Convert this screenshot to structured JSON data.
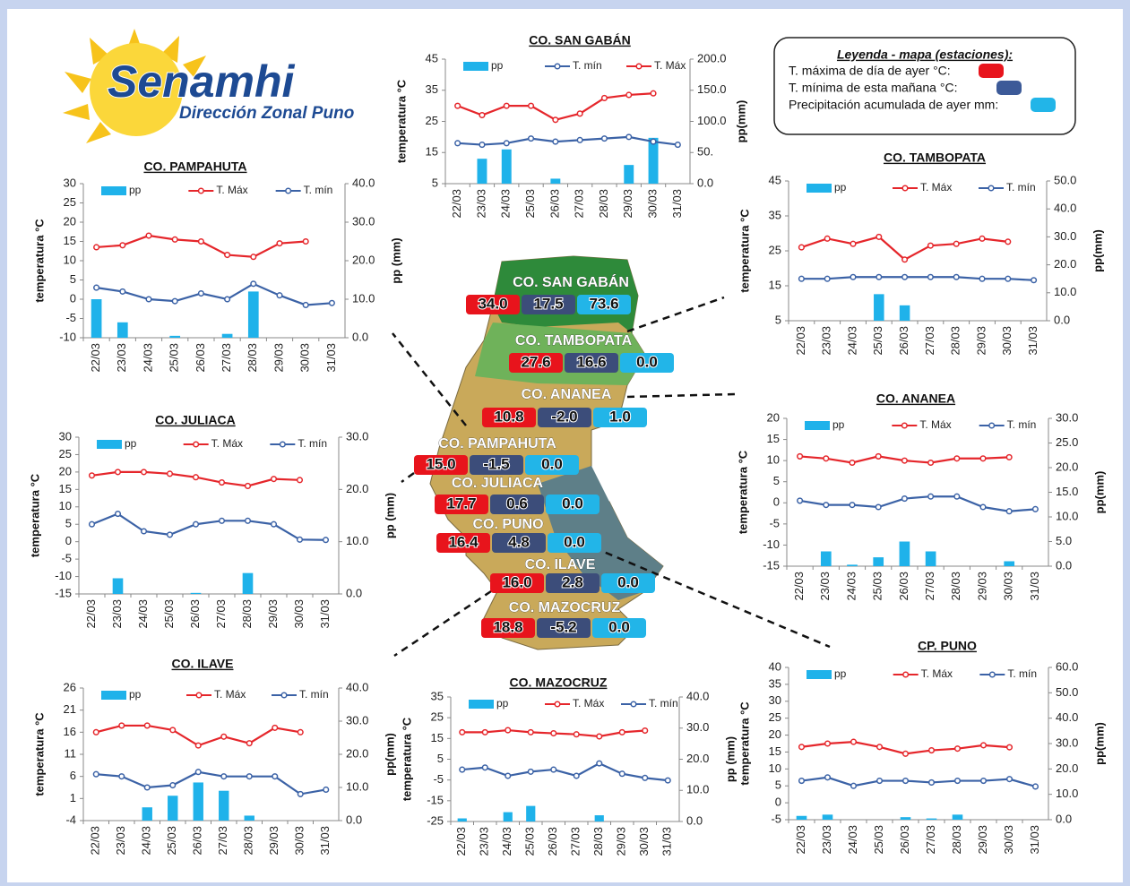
{
  "header": {
    "logo": "Senamhi",
    "subtitle": "Dirección Zonal Puno"
  },
  "legend": {
    "title": "Leyenda - mapa (estaciones):",
    "items": [
      "T. máxima de día de ayer °C:",
      "T. mínima de esta mañana °C:",
      "Precipitación acumulada de ayer mm:"
    ]
  },
  "map": {
    "stations": [
      {
        "name": "CO. SAN GABÁN",
        "tmax": "34.0",
        "tmin": "17.5",
        "pp": "73.6"
      },
      {
        "name": "CO. TAMBOPATA",
        "tmax": "27.6",
        "tmin": "16.6",
        "pp": "0.0"
      },
      {
        "name": "CO. ANANEA",
        "tmax": "10.8",
        "tmin": "-2.0",
        "pp": "1.0"
      },
      {
        "name": "CO. PAMPAHUTA",
        "tmax": "15.0",
        "tmin": "-1.5",
        "pp": "0.0"
      },
      {
        "name": "CO. JULIACA",
        "tmax": "17.7",
        "tmin": "0.6",
        "pp": "0.0"
      },
      {
        "name": "CO. PUNO",
        "tmax": "16.4",
        "tmin": "4.8",
        "pp": "0.0"
      },
      {
        "name": "CO. ILAVE",
        "tmax": "16.0",
        "tmin": "2.8",
        "pp": "0.0"
      },
      {
        "name": "CO. MAZOCRUZ",
        "tmax": "18.8",
        "tmin": "-5.2",
        "pp": "0.0"
      }
    ]
  },
  "chart_data": [
    {
      "type": "bar-line",
      "title": "CO. SAN GABÁN",
      "y_label": "temperatura °C",
      "y2_label": "pp(mm)",
      "categories": [
        "22/03",
        "23/03",
        "24/03",
        "25/03",
        "26/03",
        "27/03",
        "28/03",
        "29/03",
        "30/03",
        "31/03"
      ],
      "ylim": [
        5,
        45
      ],
      "yticks": [
        5,
        15,
        25,
        35,
        45
      ],
      "y2lim": [
        0,
        200
      ],
      "y2ticks": [
        {
          "value": 0,
          "label": "0.0"
        },
        {
          "value": 50,
          "label": "50."
        },
        {
          "value": 100,
          "label": "100.0"
        },
        {
          "value": 150,
          "label": "150.0"
        },
        {
          "value": 200,
          "label": "200.0"
        }
      ],
      "series": [
        {
          "name": "pp",
          "color": "#1fb2ea",
          "axis": "y2",
          "values": [
            0,
            40,
            55,
            0,
            8,
            0,
            0,
            30,
            73.6,
            0
          ]
        },
        {
          "name": "T. mín",
          "color": "#3b62a6",
          "values": [
            18,
            17.5,
            18,
            19.5,
            18.5,
            19,
            19.5,
            20,
            18.5,
            17.5
          ]
        },
        {
          "name": "T. Máx",
          "color": "#e5262b",
          "values": [
            30,
            27,
            30,
            30,
            25.5,
            27.5,
            32.5,
            33.5,
            34,
            null
          ]
        }
      ]
    },
    {
      "type": "bar-line",
      "title": "CO. PAMPAHUTA",
      "y_label": "temperatura °C",
      "y2_label": "pp (mm)",
      "categories": [
        "22/03",
        "23/03",
        "24/03",
        "25/03",
        "26/03",
        "27/03",
        "28/03",
        "29/03",
        "30/03",
        "31/03"
      ],
      "ylim": [
        -10,
        30
      ],
      "yticks": [
        -10,
        -5,
        0,
        5,
        10,
        15,
        20,
        25,
        30
      ],
      "y2lim": [
        0,
        40
      ],
      "y2ticks": [
        {
          "value": 0,
          "label": "0.0"
        },
        {
          "value": 10,
          "label": "10.0"
        },
        {
          "value": 20,
          "label": "20.0"
        },
        {
          "value": 30,
          "label": "30.0"
        },
        {
          "value": 40,
          "label": "40.0"
        }
      ],
      "series": [
        {
          "name": "pp",
          "color": "#1fb2ea",
          "axis": "y2",
          "values": [
            10,
            4,
            0,
            0.5,
            0,
            1,
            12,
            0,
            0,
            0
          ]
        },
        {
          "name": "T. Máx",
          "color": "#e5262b",
          "values": [
            13.5,
            14,
            16.5,
            15.5,
            15,
            11.5,
            11,
            14.5,
            15,
            null
          ]
        },
        {
          "name": "T. mín",
          "color": "#3b62a6",
          "values": [
            3,
            2,
            0,
            -0.5,
            1.5,
            0,
            4,
            1,
            -1.5,
            -1
          ]
        }
      ]
    },
    {
      "type": "bar-line",
      "title": "CO. TAMBOPATA",
      "y_label": "temperatura °C",
      "y2_label": "pp(mm)",
      "categories": [
        "22/03",
        "23/03",
        "24/03",
        "25/03",
        "26/03",
        "27/03",
        "28/03",
        "29/03",
        "30/03",
        "31/03"
      ],
      "ylim": [
        5,
        45
      ],
      "yticks": [
        5,
        15,
        25,
        35,
        45
      ],
      "y2lim": [
        0,
        50
      ],
      "y2ticks": [
        {
          "value": 0,
          "label": "0.0"
        },
        {
          "value": 10,
          "label": "10.0"
        },
        {
          "value": 20,
          "label": "20.0"
        },
        {
          "value": 30,
          "label": "30.0"
        },
        {
          "value": 40,
          "label": "40.0"
        },
        {
          "value": 50,
          "label": "50.0"
        }
      ],
      "series": [
        {
          "name": "pp",
          "color": "#1fb2ea",
          "axis": "y2",
          "values": [
            0,
            0,
            0,
            9.5,
            5.5,
            0,
            0,
            0,
            0,
            0
          ]
        },
        {
          "name": "T. Máx",
          "color": "#e5262b",
          "values": [
            26,
            28.5,
            27,
            29,
            22.5,
            26.5,
            27,
            28.5,
            27.6,
            null
          ]
        },
        {
          "name": "T. mín",
          "color": "#3b62a6",
          "values": [
            17,
            17,
            17.5,
            17.5,
            17.5,
            17.5,
            17.5,
            17,
            17,
            16.6
          ]
        }
      ]
    },
    {
      "type": "bar-line",
      "title": "CO. JULIACA",
      "y_label": "temperatura °C",
      "y2_label": "pp (mm)",
      "categories": [
        "22/03",
        "23/03",
        "24/03",
        "25/03",
        "26/03",
        "27/03",
        "28/03",
        "29/03",
        "30/03",
        "31/03"
      ],
      "ylim": [
        -15,
        30
      ],
      "yticks": [
        -15,
        -10,
        -5,
        0,
        5,
        10,
        15,
        20,
        25,
        30
      ],
      "y2lim": [
        0,
        30
      ],
      "y2ticks": [
        {
          "value": 0,
          "label": "0.0"
        },
        {
          "value": 10,
          "label": "10.0"
        },
        {
          "value": 20,
          "label": "20.0"
        },
        {
          "value": 30,
          "label": "30.0"
        }
      ],
      "series": [
        {
          "name": "pp",
          "color": "#1fb2ea",
          "axis": "y2",
          "values": [
            0,
            3,
            0,
            0,
            0.2,
            0,
            4,
            0,
            0,
            0
          ]
        },
        {
          "name": "T. Máx",
          "color": "#e5262b",
          "values": [
            19,
            20,
            20,
            19.5,
            18.5,
            17,
            16,
            18,
            17.7,
            null
          ]
        },
        {
          "name": "T. mín",
          "color": "#3b62a6",
          "values": [
            5,
            8,
            3,
            2,
            5,
            6,
            6,
            5,
            0.6,
            0.5
          ]
        }
      ]
    },
    {
      "type": "bar-line",
      "title": "CO. ANANEA",
      "y_label": "temperatura °C",
      "y2_label": "pp(mm)",
      "categories": [
        "22/03",
        "23/03",
        "24/03",
        "25/03",
        "26/03",
        "27/03",
        "28/03",
        "29/03",
        "30/03",
        "31/03"
      ],
      "ylim": [
        -15,
        20
      ],
      "yticks": [
        -15,
        -10,
        -5,
        0,
        5,
        10,
        15,
        20
      ],
      "y2lim": [
        0,
        30
      ],
      "y2ticks": [
        {
          "value": 0,
          "label": "0.0"
        },
        {
          "value": 5,
          "label": "5.0"
        },
        {
          "value": 10,
          "label": "10.0"
        },
        {
          "value": 15,
          "label": "15.0"
        },
        {
          "value": 20,
          "label": "20.0"
        },
        {
          "value": 25,
          "label": "25.0"
        },
        {
          "value": 30,
          "label": "30.0"
        }
      ],
      "series": [
        {
          "name": "pp",
          "color": "#1fb2ea",
          "axis": "y2",
          "values": [
            0,
            3,
            0.3,
            1.8,
            5,
            3,
            0,
            0,
            1,
            0
          ]
        },
        {
          "name": "T. Máx",
          "color": "#e5262b",
          "values": [
            11,
            10.5,
            9.5,
            11,
            10,
            9.5,
            10.5,
            10.5,
            10.8,
            null
          ]
        },
        {
          "name": "T. mín",
          "color": "#3b62a6",
          "values": [
            0.5,
            -0.5,
            -0.5,
            -1,
            1,
            1.5,
            1.5,
            -1,
            -2,
            -1.5
          ]
        }
      ]
    },
    {
      "type": "bar-line",
      "title": "CO. ILAVE",
      "y_label": "temperatura °C",
      "y2_label": "pp(mm)",
      "categories": [
        "22/03",
        "23/03",
        "24/03",
        "25/03",
        "26/03",
        "27/03",
        "28/03",
        "29/03",
        "30/03",
        "31/03"
      ],
      "ylim": [
        -4,
        26
      ],
      "yticks": [
        -4,
        1,
        6,
        11,
        16,
        21,
        26
      ],
      "y2lim": [
        0,
        40
      ],
      "y2ticks": [
        {
          "value": 0,
          "label": "0.0"
        },
        {
          "value": 10,
          "label": "10.0"
        },
        {
          "value": 20,
          "label": "20.0"
        },
        {
          "value": 30,
          "label": "30.0"
        },
        {
          "value": 40,
          "label": "40.0"
        }
      ],
      "series": [
        {
          "name": "pp",
          "color": "#1fb2ea",
          "axis": "y2",
          "values": [
            0,
            0,
            4,
            7.5,
            11.5,
            9,
            1.5,
            0,
            0,
            0
          ]
        },
        {
          "name": "T. Máx",
          "color": "#e5262b",
          "values": [
            16,
            17.5,
            17.5,
            16.5,
            13,
            15,
            13.5,
            17,
            16,
            null
          ]
        },
        {
          "name": "T. mín",
          "color": "#3b62a6",
          "values": [
            6.5,
            6,
            3.5,
            4,
            7,
            6,
            6,
            6,
            2,
            3
          ]
        }
      ]
    },
    {
      "type": "bar-line",
      "title": "CO. MAZOCRUZ",
      "y_label": "temperatura °C",
      "y2_label": "pp (mm)",
      "categories": [
        "22/03",
        "23/03",
        "24/03",
        "25/03",
        "26/03",
        "27/03",
        "28/03",
        "29/03",
        "30/03",
        "31/03"
      ],
      "ylim": [
        -25,
        35
      ],
      "yticks": [
        -25,
        -15,
        -5,
        5,
        15,
        25,
        35
      ],
      "y2lim": [
        0,
        40
      ],
      "y2ticks": [
        {
          "value": 0,
          "label": "0.0"
        },
        {
          "value": 10,
          "label": "10.0"
        },
        {
          "value": 20,
          "label": "20.0"
        },
        {
          "value": 30,
          "label": "30.0"
        },
        {
          "value": 40,
          "label": "40.0"
        }
      ],
      "series": [
        {
          "name": "pp",
          "color": "#1fb2ea",
          "axis": "y2",
          "values": [
            1,
            0,
            3,
            5,
            0,
            0,
            2,
            0,
            0,
            0
          ]
        },
        {
          "name": "T. Máx",
          "color": "#e5262b",
          "values": [
            18,
            18,
            19,
            18,
            17.5,
            17,
            16,
            18,
            18.8,
            null
          ]
        },
        {
          "name": "T. mín",
          "color": "#3b62a6",
          "values": [
            0,
            1,
            -3,
            -1,
            0,
            -3,
            3,
            -2,
            -4,
            -5.2
          ]
        }
      ]
    },
    {
      "type": "bar-line",
      "title": "CP. PUNO",
      "y_label": "temperatura °C",
      "y2_label": "pp(mm)",
      "categories": [
        "22/03",
        "23/03",
        "24/03",
        "25/03",
        "26/03",
        "27/03",
        "28/03",
        "29/03",
        "30/03",
        "31/03"
      ],
      "ylim": [
        -5,
        40
      ],
      "yticks": [
        -5,
        0,
        5,
        10,
        15,
        20,
        25,
        30,
        35,
        40
      ],
      "y2lim": [
        0,
        60
      ],
      "y2ticks": [
        {
          "value": 0,
          "label": "0.0"
        },
        {
          "value": 10,
          "label": "10.0"
        },
        {
          "value": 20,
          "label": "20.0"
        },
        {
          "value": 30,
          "label": "30.0"
        },
        {
          "value": 40,
          "label": "40.0"
        },
        {
          "value": 50,
          "label": "50.0"
        },
        {
          "value": 60,
          "label": "60.0"
        }
      ],
      "series": [
        {
          "name": "pp",
          "color": "#1fb2ea",
          "axis": "y2",
          "values": [
            1.5,
            2,
            0,
            0,
            1,
            0.5,
            2,
            0,
            0,
            0
          ]
        },
        {
          "name": "T. Máx",
          "color": "#e5262b",
          "values": [
            16.5,
            17.5,
            18,
            16.5,
            14.5,
            15.5,
            16,
            17,
            16.4,
            null
          ]
        },
        {
          "name": "T. mín",
          "color": "#3b62a6",
          "values": [
            6.5,
            7.5,
            5,
            6.5,
            6.5,
            6,
            6.5,
            6.5,
            7,
            4.8
          ]
        }
      ]
    }
  ]
}
